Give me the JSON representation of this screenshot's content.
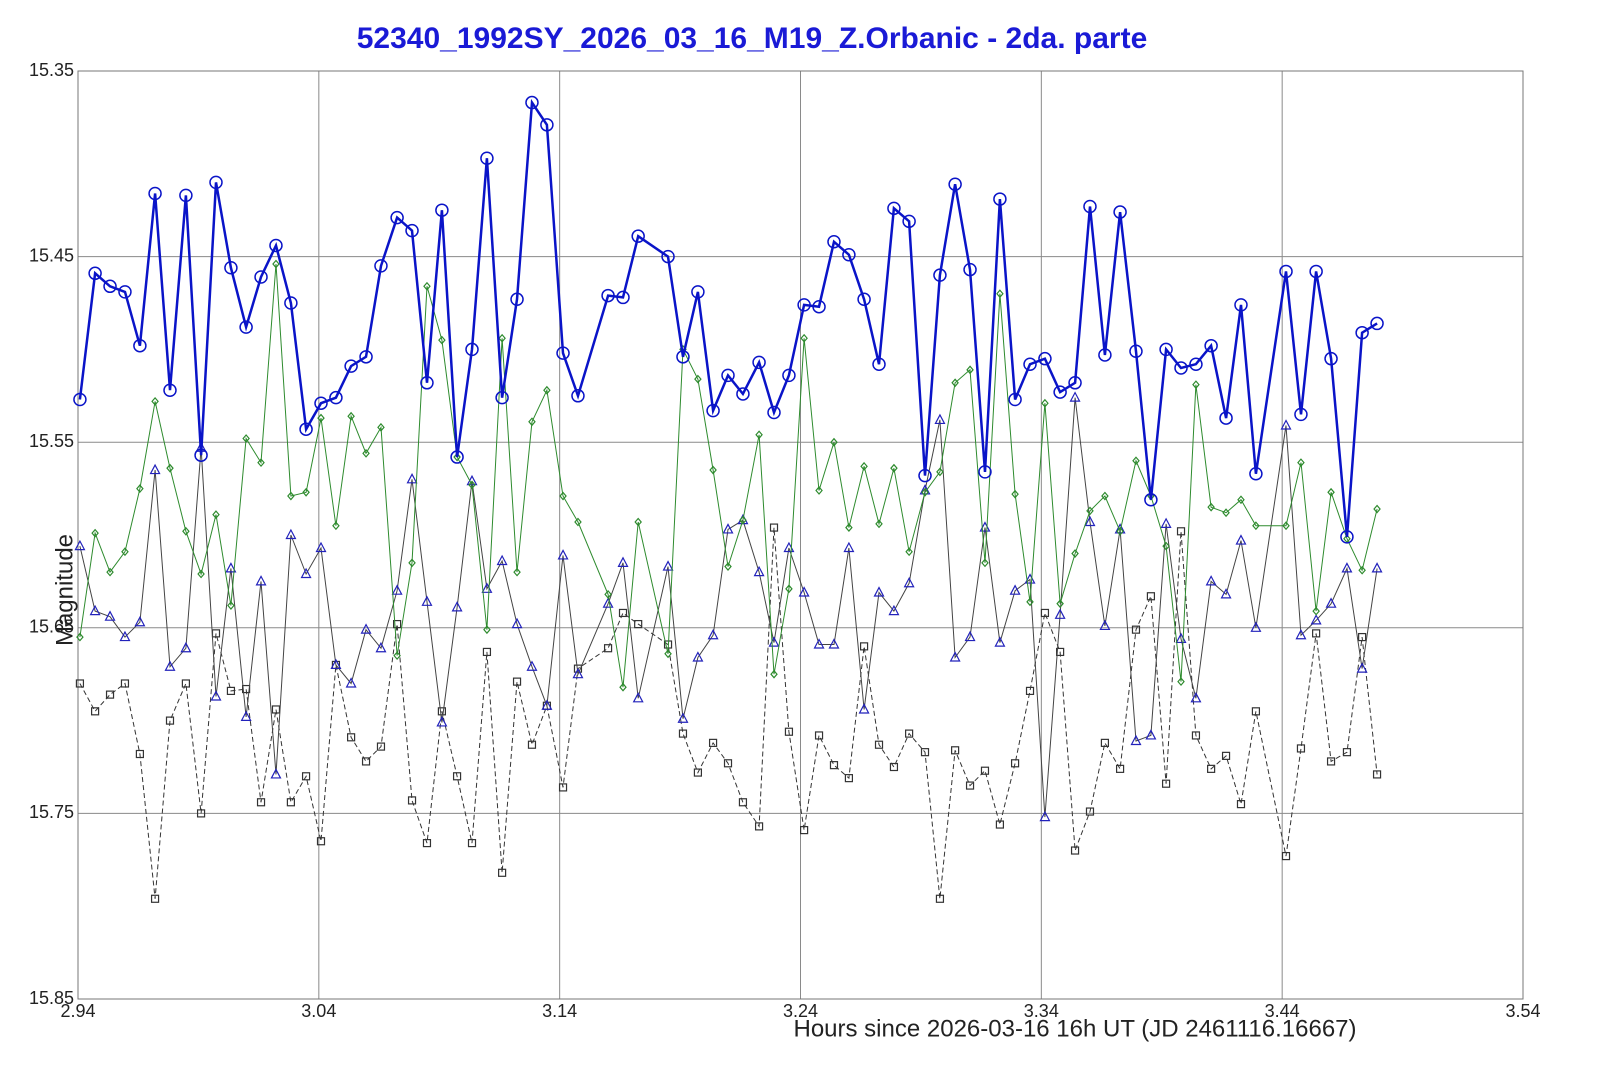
{
  "chart_data": {
    "type": "line",
    "title": "52340_1992SY_2026_03_16_M19_Z.Orbanic - 2da. parte",
    "xlabel": "Hours since 2026-03-16 16h UT (JD 2461116.16667)",
    "ylabel": "Magnitude",
    "xlim": [
      2.94,
      3.54
    ],
    "ylim": [
      15.35,
      15.85
    ],
    "y_inverted": true,
    "xticks": [
      2.94,
      3.04,
      3.14,
      3.24,
      3.34,
      3.44,
      3.54
    ],
    "yticks": [
      15.35,
      15.45,
      15.55,
      15.65,
      15.75,
      15.85
    ],
    "grid": true,
    "x": [
      2.9408,
      2.9471,
      2.9533,
      2.9595,
      2.9657,
      2.972,
      2.9782,
      2.9848,
      2.9911,
      2.9973,
      3.0035,
      3.0098,
      3.016,
      3.0222,
      3.0284,
      3.0347,
      3.0409,
      3.0471,
      3.0534,
      3.0596,
      3.0658,
      3.0725,
      3.0787,
      3.0849,
      3.0911,
      3.0974,
      3.1036,
      3.1098,
      3.1161,
      3.1223,
      3.1285,
      3.1347,
      3.1414,
      3.1476,
      3.1601,
      3.1663,
      3.1726,
      3.185,
      3.1912,
      3.1974,
      3.2037,
      3.2099,
      3.2161,
      3.2228,
      3.229,
      3.2352,
      3.2415,
      3.2477,
      3.2539,
      3.2601,
      3.2664,
      3.2726,
      3.2788,
      3.2851,
      3.2917,
      3.2979,
      3.3042,
      3.3104,
      3.3166,
      3.3228,
      3.3291,
      3.3353,
      3.3415,
      3.3478,
      3.354,
      3.3602,
      3.3664,
      3.3727,
      3.3793,
      3.3855,
      3.3918,
      3.398,
      3.4042,
      3.4105,
      3.4167,
      3.4229,
      3.4291,
      3.4416,
      3.4478,
      3.4541,
      3.4603,
      3.4669,
      3.4732,
      3.4794
    ],
    "series": [
      {
        "color": "#333333",
        "marker_color": "#333333",
        "marker": "square",
        "dash": true,
        "line_width": 1,
        "values": [
          15.68,
          15.695,
          15.686,
          15.68,
          15.718,
          15.796,
          15.7,
          15.68,
          15.75,
          15.653,
          15.684,
          15.683,
          15.744,
          15.694,
          15.744,
          15.73,
          15.765,
          15.67,
          15.709,
          15.722,
          15.714,
          15.648,
          15.743,
          15.766,
          15.695,
          15.73,
          15.766,
          15.663,
          15.782,
          15.679,
          15.713,
          15.692,
          15.736,
          15.672,
          15.661,
          15.642,
          15.648,
          15.659,
          15.707,
          15.728,
          15.712,
          15.723,
          15.744,
          15.757,
          15.596,
          15.706,
          15.759,
          15.708,
          15.724,
          15.731,
          15.66,
          15.713,
          15.725,
          15.707,
          15.717,
          15.796,
          15.716,
          15.735,
          15.727,
          15.756,
          15.723,
          15.684,
          15.642,
          15.663,
          15.77,
          15.749,
          15.712,
          15.726,
          15.651,
          15.633,
          15.734,
          15.598,
          15.708,
          15.726,
          15.719,
          15.745,
          15.695,
          15.773,
          15.715,
          15.653,
          15.722,
          15.717,
          15.655,
          15.729
        ]
      },
      {
        "color": "#444444",
        "marker_color": "#2222bb",
        "marker": "triangle",
        "dash": false,
        "line_width": 1,
        "values": [
          15.606,
          15.641,
          15.644,
          15.655,
          15.647,
          15.565,
          15.671,
          15.661,
          15.553,
          15.687,
          15.618,
          15.698,
          15.625,
          15.729,
          15.6,
          15.621,
          15.607,
          15.67,
          15.68,
          15.651,
          15.661,
          15.63,
          15.57,
          15.636,
          15.701,
          15.639,
          15.571,
          15.629,
          15.614,
          15.648,
          15.671,
          15.692,
          15.611,
          15.675,
          15.637,
          15.615,
          15.688,
          15.617,
          15.699,
          15.666,
          15.654,
          15.597,
          15.592,
          15.62,
          15.658,
          15.607,
          15.631,
          15.659,
          15.659,
          15.607,
          15.694,
          15.631,
          15.641,
          15.626,
          15.576,
          15.538,
          15.666,
          15.655,
          15.596,
          15.658,
          15.63,
          15.624,
          15.752,
          15.643,
          15.526,
          15.593,
          15.649,
          15.597,
          15.711,
          15.708,
          15.594,
          15.656,
          15.688,
          15.625,
          15.632,
          15.603,
          15.65,
          15.541,
          15.654,
          15.646,
          15.637,
          15.618,
          15.672,
          15.618
        ]
      },
      {
        "color": "#2e8b2e",
        "marker_color": "#2e8b2e",
        "marker": "diamond",
        "dash": false,
        "line_width": 1,
        "values": [
          15.655,
          15.599,
          15.62,
          15.609,
          15.575,
          15.528,
          15.564,
          15.598,
          15.621,
          15.589,
          15.638,
          15.548,
          15.561,
          15.454,
          15.579,
          15.577,
          15.537,
          15.595,
          15.536,
          15.556,
          15.542,
          15.665,
          15.615,
          15.466,
          15.495,
          15.558,
          15.573,
          15.651,
          15.494,
          15.62,
          15.539,
          15.522,
          15.579,
          15.593,
          15.632,
          15.682,
          15.593,
          15.664,
          15.5,
          15.516,
          15.565,
          15.617,
          15.592,
          15.546,
          15.675,
          15.629,
          15.494,
          15.576,
          15.55,
          15.596,
          15.563,
          15.594,
          15.564,
          15.609,
          15.577,
          15.566,
          15.518,
          15.511,
          15.615,
          15.47,
          15.578,
          15.636,
          15.529,
          15.637,
          15.61,
          15.587,
          15.579,
          15.598,
          15.56,
          15.579,
          15.606,
          15.679,
          15.519,
          15.585,
          15.588,
          15.581,
          15.595,
          15.595,
          15.561,
          15.641,
          15.577,
          15.602,
          15.619,
          15.586
        ]
      },
      {
        "color": "#0a14c8",
        "marker_color": "#0a14c8",
        "marker": "circle",
        "dash": false,
        "line_width": 2.5,
        "values": [
          15.527,
          15.459,
          15.466,
          15.469,
          15.498,
          15.416,
          15.522,
          15.417,
          15.557,
          15.41,
          15.456,
          15.488,
          15.461,
          15.444,
          15.475,
          15.543,
          15.529,
          15.526,
          15.509,
          15.504,
          15.455,
          15.429,
          15.436,
          15.518,
          15.425,
          15.558,
          15.5,
          15.397,
          15.526,
          15.473,
          15.367,
          15.379,
          15.502,
          15.525,
          15.471,
          15.472,
          15.439,
          15.45,
          15.504,
          15.469,
          15.533,
          15.514,
          15.524,
          15.507,
          15.534,
          15.514,
          15.476,
          15.477,
          15.442,
          15.449,
          15.473,
          15.508,
          15.424,
          15.431,
          15.568,
          15.46,
          15.411,
          15.457,
          15.566,
          15.419,
          15.527,
          15.508,
          15.505,
          15.523,
          15.518,
          15.423,
          15.503,
          15.426,
          15.501,
          15.581,
          15.5,
          15.51,
          15.508,
          15.498,
          15.537,
          15.476,
          15.567,
          15.458,
          15.535,
          15.458,
          15.505,
          15.601,
          15.491,
          15.486
        ]
      }
    ]
  }
}
